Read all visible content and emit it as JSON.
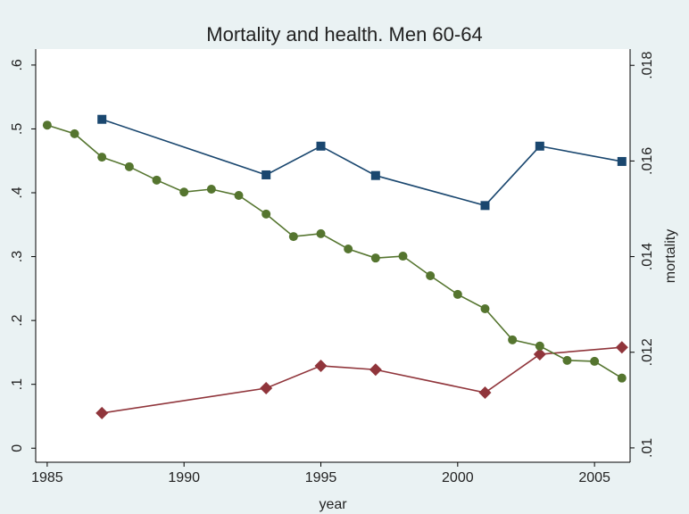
{
  "chart_data": {
    "type": "line",
    "title": "Mortality and health. Men 60-64",
    "x_label": "year",
    "y2_label": "mortality",
    "xlim": [
      1984.58,
      2006.3
    ],
    "xticks": [
      1985,
      1990,
      1995,
      2000,
      2005
    ],
    "ylim": [
      -0.022,
      0.625
    ],
    "yticks": [
      {
        "value": 0,
        "label": "0"
      },
      {
        "value": 0.1,
        "label": ".1"
      },
      {
        "value": 0.2,
        "label": ".2"
      },
      {
        "value": 0.3,
        "label": ".3"
      },
      {
        "value": 0.4,
        "label": ".4"
      },
      {
        "value": 0.5,
        "label": ".5"
      },
      {
        "value": 0.6,
        "label": ".6"
      }
    ],
    "y2lim": [
      0.0097,
      0.01834
    ],
    "y2ticks": [
      {
        "value": 0.01,
        "label": ".01"
      },
      {
        "value": 0.012,
        "label": ".012"
      },
      {
        "value": 0.014,
        "label": ".014"
      },
      {
        "value": 0.016,
        "label": ".016"
      },
      {
        "value": 0.018,
        "label": ".018"
      }
    ],
    "grid": false,
    "series": [
      {
        "color": "#1a476f",
        "marker": "square",
        "axis": "y",
        "x": [
          1987,
          1993,
          1995,
          1997,
          2001,
          2003,
          2006
        ],
        "values": [
          0.515,
          0.428,
          0.473,
          0.427,
          0.38,
          0.473,
          0.449
        ]
      },
      {
        "color": "#90353b",
        "marker": "diamond",
        "axis": "y",
        "x": [
          1987,
          1993,
          1995,
          1997,
          2001,
          2003,
          2006
        ],
        "values": [
          0.055,
          0.094,
          0.129,
          0.123,
          0.087,
          0.147,
          0.158
        ]
      },
      {
        "color": "#55752f",
        "marker": "circle",
        "axis": "y2",
        "x": [
          1985,
          1986,
          1987,
          1988,
          1989,
          1990,
          1991,
          1992,
          1993,
          1994,
          1995,
          1996,
          1997,
          1998,
          1999,
          2000,
          2001,
          2002,
          2003,
          2004,
          2005,
          2006
        ],
        "values": [
          0.01675,
          0.01657,
          0.01608,
          0.01588,
          0.0156,
          0.01535,
          0.01541,
          0.01528,
          0.01489,
          0.01442,
          0.01448,
          0.01416,
          0.01397,
          0.01401,
          0.0136,
          0.01321,
          0.01291,
          0.01226,
          0.01213,
          0.01183,
          0.01181,
          0.01146
        ]
      }
    ]
  }
}
